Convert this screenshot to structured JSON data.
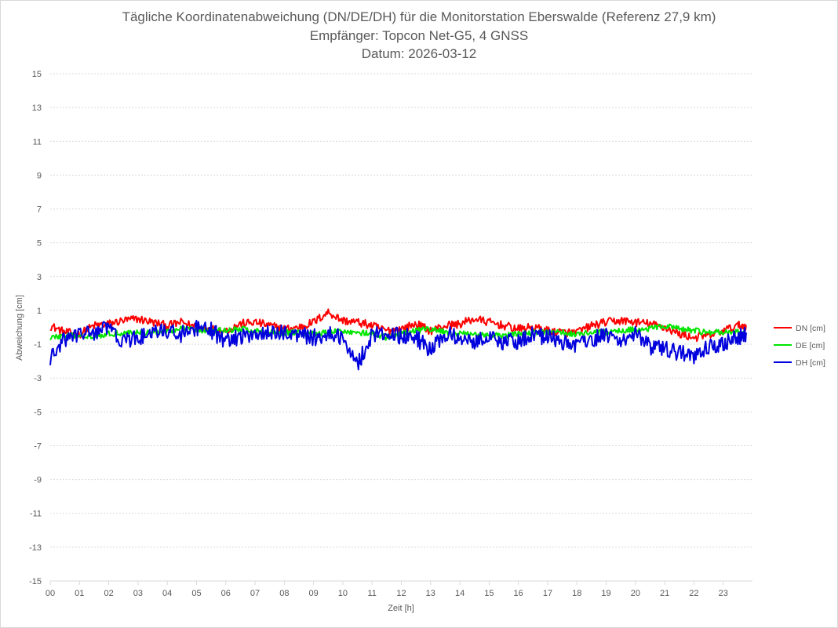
{
  "chart_data": {
    "type": "line",
    "title": "Tägliche Koordinatenabweichung (DN/DE/DH) für die Monitorstation Eberswalde (Referenz 27,9 km)",
    "subtitle": "Empfänger: Topcon Net-G5, 4 GNSS",
    "date_label": "Datum: 2026-03-12",
    "xlabel": "Zeit [h]",
    "ylabel": "Abweichung [cm]",
    "xlim": [
      0,
      24
    ],
    "ylim": [
      -15,
      15
    ],
    "grid": true,
    "legend_position": "right",
    "x_tick_labels": [
      "00",
      "01",
      "02",
      "03",
      "04",
      "05",
      "06",
      "07",
      "08",
      "09",
      "10",
      "11",
      "12",
      "13",
      "14",
      "15",
      "16",
      "17",
      "18",
      "19",
      "20",
      "21",
      "22",
      "23"
    ],
    "y_ticks": [
      15,
      13,
      11,
      9,
      7,
      5,
      3,
      1,
      -1,
      -3,
      -5,
      -7,
      -9,
      -11,
      -13,
      -15
    ],
    "y_tick_labels": [
      "15",
      "13",
      "11",
      "9",
      "7",
      "5",
      "3",
      "1",
      "-1",
      "-3",
      "-5",
      "-7",
      "-9",
      "-11",
      "-13",
      "-15"
    ],
    "x": [
      0,
      0.5,
      1,
      1.5,
      2,
      2.5,
      3,
      3.5,
      4,
      4.5,
      5,
      5.5,
      6,
      6.5,
      7,
      7.5,
      8,
      8.5,
      9,
      9.5,
      10,
      10.5,
      11,
      11.5,
      12,
      12.5,
      13,
      13.5,
      14,
      14.5,
      15,
      15.5,
      16,
      16.5,
      17,
      17.5,
      18,
      18.5,
      19,
      19.5,
      20,
      20.5,
      21,
      21.5,
      22,
      22.5,
      23,
      23.5,
      23.8
    ],
    "series": [
      {
        "name": "DN [cm]",
        "color": "#ff0000",
        "values": [
          0.1,
          -0.3,
          -0.4,
          0.1,
          0.2,
          0.4,
          0.5,
          0.3,
          0.1,
          0.3,
          0.0,
          -0.1,
          -0.2,
          0.2,
          0.3,
          0.1,
          -0.1,
          0.0,
          0.3,
          0.9,
          0.4,
          0.3,
          0.1,
          -0.2,
          -0.1,
          0.2,
          -0.2,
          0.1,
          0.2,
          0.5,
          0.3,
          0.1,
          -0.1,
          0.0,
          -0.2,
          -0.3,
          -0.3,
          0.1,
          0.3,
          0.4,
          0.3,
          0.2,
          0.0,
          -0.4,
          -0.6,
          -0.5,
          -0.2,
          0.1,
          0.1
        ]
      },
      {
        "name": "DE [cm]",
        "color": "#00e600",
        "values": [
          -0.6,
          -0.5,
          -0.5,
          -0.5,
          -0.4,
          -0.3,
          -0.3,
          -0.3,
          -0.2,
          -0.1,
          -0.1,
          -0.2,
          -0.2,
          -0.1,
          -0.2,
          -0.3,
          -0.3,
          -0.3,
          -0.4,
          -0.3,
          -0.2,
          -0.3,
          -0.4,
          -0.6,
          -0.4,
          -0.2,
          -0.1,
          -0.3,
          -0.4,
          -0.4,
          -0.5,
          -0.5,
          -0.4,
          -0.3,
          -0.3,
          -0.3,
          -0.4,
          -0.3,
          -0.3,
          -0.2,
          -0.1,
          -0.1,
          0.1,
          -0.1,
          -0.2,
          -0.3,
          -0.3,
          -0.3,
          -0.4
        ]
      },
      {
        "name": "DH [cm]",
        "color": "#0000dd",
        "values": [
          -1.9,
          -0.7,
          -0.4,
          -0.3,
          0.0,
          -0.9,
          -0.6,
          -0.4,
          -0.2,
          -0.4,
          -0.1,
          -0.2,
          -0.8,
          -0.6,
          -0.3,
          -0.4,
          -0.3,
          -0.4,
          -0.6,
          -0.4,
          -0.6,
          -2.2,
          -0.4,
          -0.4,
          -0.5,
          -0.6,
          -1.4,
          -0.4,
          -0.6,
          -0.8,
          -0.5,
          -0.9,
          -0.8,
          -0.4,
          -0.6,
          -0.9,
          -1.0,
          -0.7,
          -0.5,
          -0.7,
          -0.4,
          -1.2,
          -1.3,
          -1.5,
          -1.8,
          -1.2,
          -1.0,
          -0.6,
          -0.4
        ]
      }
    ]
  }
}
